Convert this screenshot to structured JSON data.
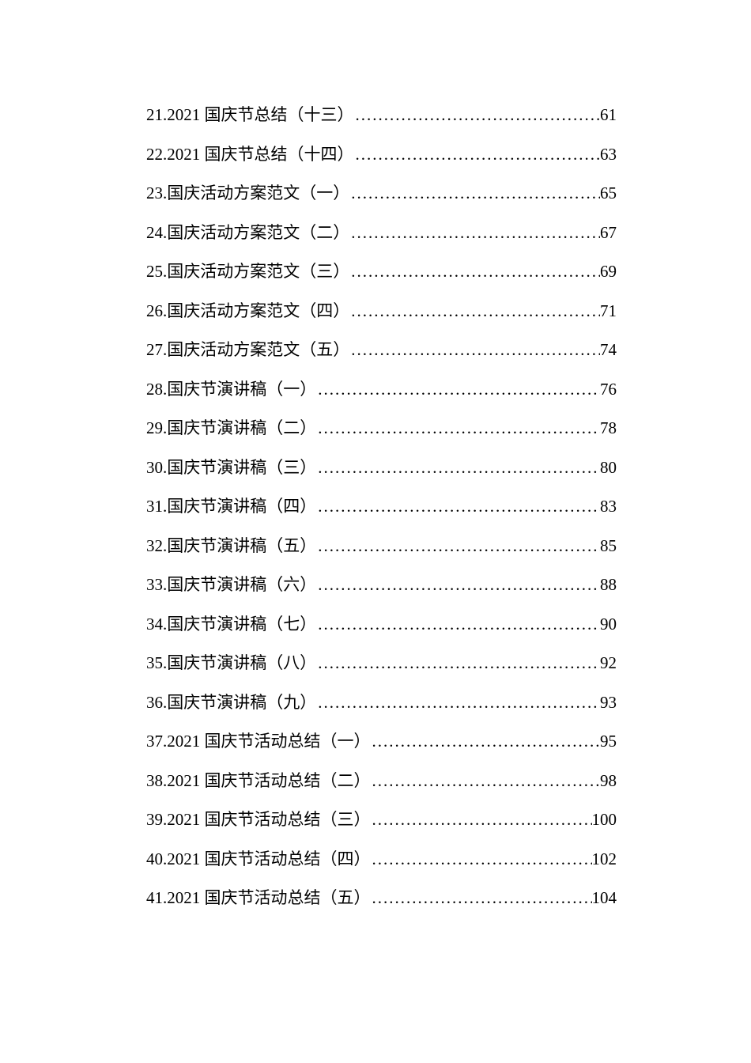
{
  "toc": {
    "font_size": 21,
    "text_color": "#000000",
    "background_color": "#ffffff",
    "line_spacing": 18,
    "entries": [
      {
        "number": "21.",
        "title": "2021 国庆节总结（十三）",
        "page": "61"
      },
      {
        "number": "22.",
        "title": "2021 国庆节总结（十四）",
        "page": "63"
      },
      {
        "number": "23.",
        "title": "国庆活动方案范文（一）",
        "page": "65"
      },
      {
        "number": "24.",
        "title": "国庆活动方案范文（二）",
        "page": "67"
      },
      {
        "number": "25.",
        "title": "国庆活动方案范文（三）",
        "page": "69"
      },
      {
        "number": "26.",
        "title": "国庆活动方案范文（四）",
        "page": "71"
      },
      {
        "number": "27.",
        "title": "国庆活动方案范文（五）",
        "page": "74"
      },
      {
        "number": "28.",
        "title": "国庆节演讲稿（一）",
        "page": "76"
      },
      {
        "number": "29.",
        "title": "国庆节演讲稿（二）",
        "page": "78"
      },
      {
        "number": "30.",
        "title": "国庆节演讲稿（三）",
        "page": "80"
      },
      {
        "number": "31.",
        "title": "国庆节演讲稿（四）",
        "page": "83"
      },
      {
        "number": "32.",
        "title": "国庆节演讲稿（五）",
        "page": "85"
      },
      {
        "number": "33.",
        "title": "国庆节演讲稿（六）",
        "page": "88"
      },
      {
        "number": "34.",
        "title": "国庆节演讲稿（七）",
        "page": "90"
      },
      {
        "number": "35.",
        "title": "国庆节演讲稿（八）",
        "page": "92"
      },
      {
        "number": "36.",
        "title": "国庆节演讲稿（九）",
        "page": "93"
      },
      {
        "number": "37.",
        "title": "2021 国庆节活动总结（一）",
        "page": "95"
      },
      {
        "number": "38.",
        "title": "2021 国庆节活动总结（二）",
        "page": "98"
      },
      {
        "number": "39.",
        "title": "2021 国庆节活动总结（三）",
        "page": "100"
      },
      {
        "number": "40.",
        "title": "2021 国庆节活动总结（四）",
        "page": "102"
      },
      {
        "number": "41.",
        "title": "2021 国庆节活动总结（五）",
        "page": "104"
      }
    ]
  }
}
